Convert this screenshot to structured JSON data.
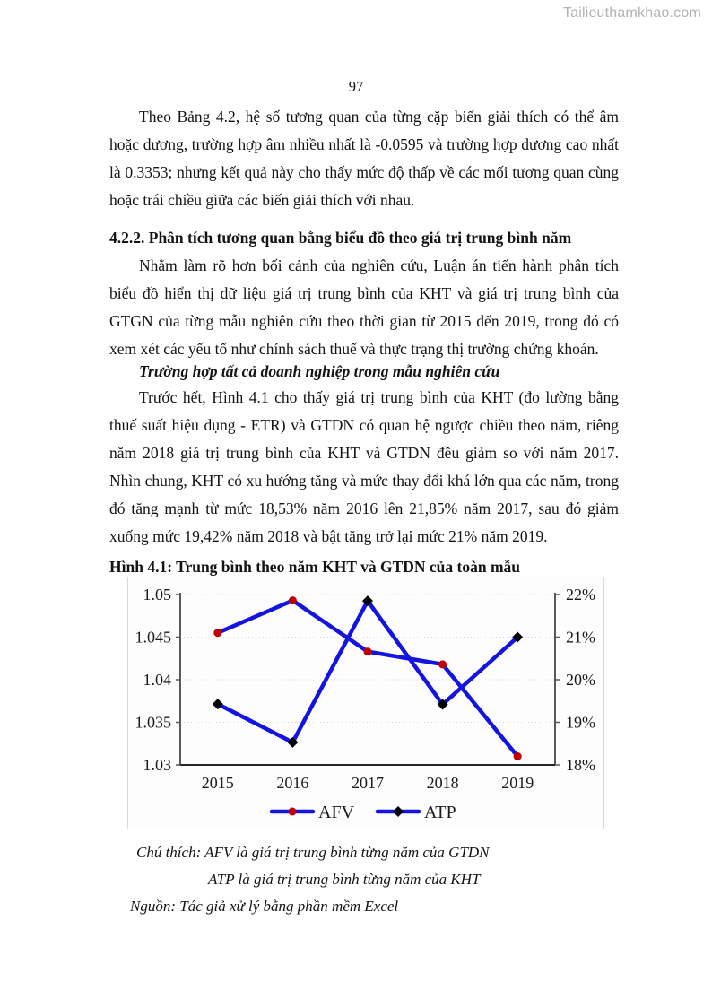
{
  "watermark": "Tailieuthamkhao.com",
  "page_number": "97",
  "content": {
    "p1": "Theo Bảng 4.2, hệ số tương quan của từng cặp biến giải thích có thể âm hoặc dương, trường hợp âm nhiều nhất là -0.0595 và trường hợp dương cao nhất là 0.3353; nhưng kết quả này cho thấy mức độ thấp về các mối tương quan cùng hoặc trái chiều giữa các biến giải thích với nhau.",
    "heading_422": "4.2.2. Phân tích tương quan bằng biểu đồ theo giá trị trung bình năm",
    "p2": "Nhằm làm rõ hơn bối cảnh của nghiên cứu, Luận án tiến hành phân tích biểu đồ hiển thị dữ liệu giá trị trung bình của KHT và giá trị trung bình của GTGN của từng mẫu nghiên cứu theo thời gian từ 2015 đến 2019, trong đó có xem xét các yếu tố như chính sách thuế và thực trạng thị trường chứng khoán.",
    "subheading": "Trường hợp tất cả doanh nghiệp trong mẫu nghiên cứu",
    "p3": "Trước hết, Hình 4.1 cho thấy giá trị trung bình của KHT (đo lường bằng thuế suất hiệu dụng - ETR) và GTDN có quan hệ ngược chiều theo năm, riêng năm 2018 giá trị trung bình của KHT và GTDN đều giảm so với năm 2017. Nhìn chung, KHT có xu hướng tăng và mức thay đổi khá lớn qua các năm, trong đó tăng mạnh từ mức 18,53% năm 2016 lên 21,85% năm 2017, sau đó giảm xuống mức 19,42% năm 2018 và bật tăng trở lại mức 21% năm 2019.",
    "figure_caption": "Hình 4.1: Trung bình theo năm KHT và GTDN của toàn mẫu",
    "notes": [
      "Chú thích: AFV là giá trị trung bình từng năm của GTDN",
      "ATP là giá trị trung bình từng năm của KHT",
      "Nguồn: Tác giả xử lý bằng phần mềm Excel"
    ]
  },
  "chart_data": {
    "type": "line",
    "categories": [
      "2015",
      "2016",
      "2017",
      "2018",
      "2019"
    ],
    "series": [
      {
        "name": "AFV",
        "axis": "left",
        "values": [
          1.0455,
          1.0493,
          1.0433,
          1.0418,
          1.031
        ],
        "marker": "circle",
        "marker_color": "#c00000",
        "line_color": "#1414e0"
      },
      {
        "name": "ATP",
        "axis": "right",
        "values": [
          19.43,
          18.53,
          21.85,
          19.42,
          21.0
        ],
        "marker": "diamond",
        "marker_color": "#000000",
        "line_color": "#1414e0"
      }
    ],
    "left_axis": {
      "min": 1.03,
      "max": 1.05,
      "tick_labels": [
        "1.05",
        "1.045",
        "1.04",
        "1.035",
        "1.03"
      ],
      "tick_values": [
        1.05,
        1.045,
        1.04,
        1.035,
        1.03
      ]
    },
    "right_axis": {
      "min": 18,
      "max": 22,
      "tick_labels": [
        "22%",
        "21%",
        "20%",
        "19%",
        "18%"
      ],
      "tick_values": [
        22,
        21,
        20,
        19,
        18
      ]
    },
    "grid": "horizontal-dotted",
    "legend_position": "bottom",
    "colors": {
      "gridline": "#d9d9d9",
      "axis": "#595959",
      "bottom_axis": "#262626",
      "tick_text": "#1a1a1a"
    }
  }
}
